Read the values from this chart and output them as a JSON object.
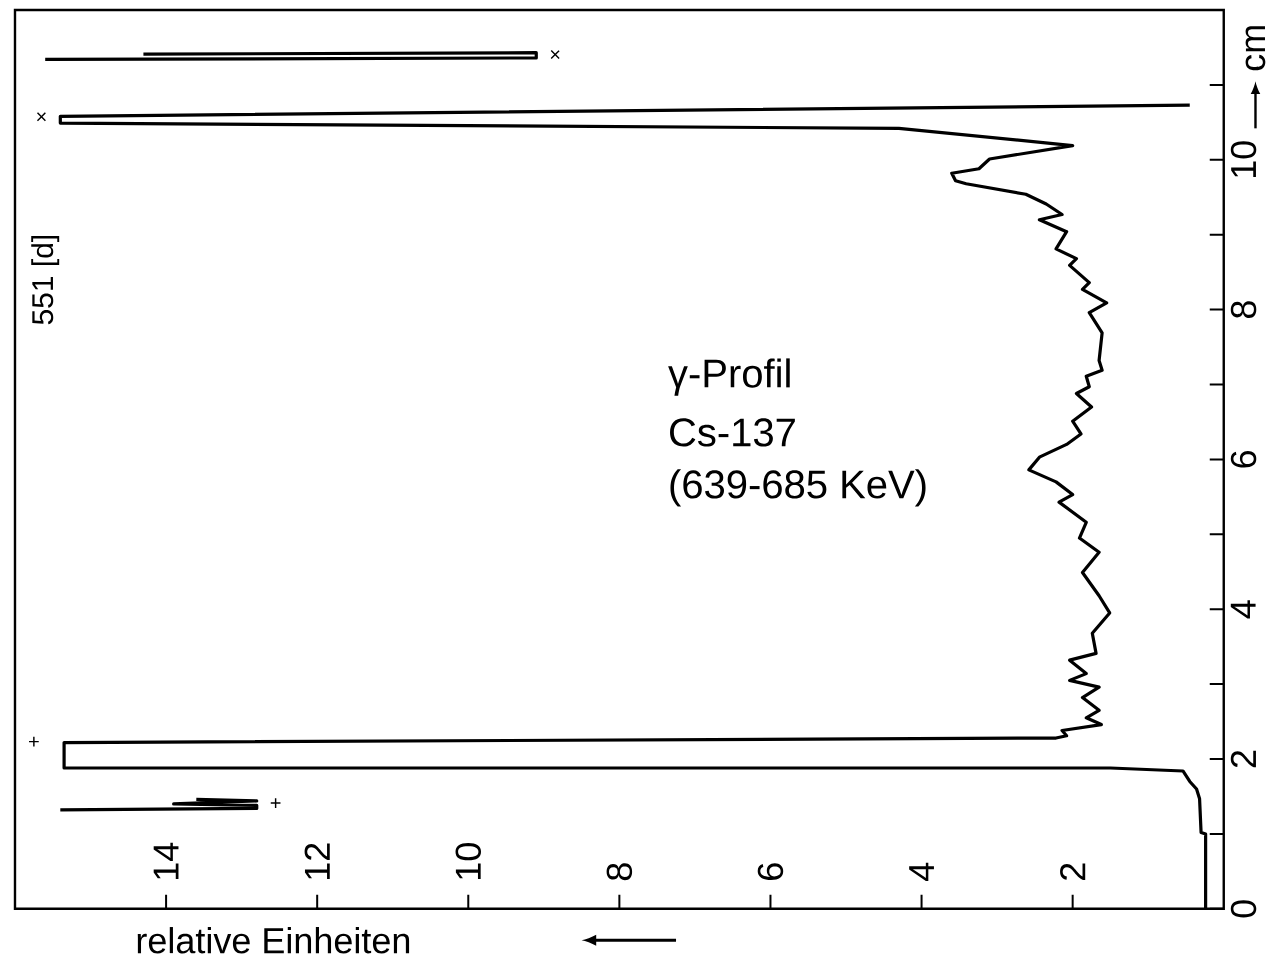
{
  "chart_data": {
    "type": "line",
    "xlabel": "relative Einheiten",
    "ylabel": "cm",
    "annotations": [
      "551 [d]",
      "γ-Profil",
      "Cs-137",
      "(639-685 KeV)",
      "+",
      "+",
      "×",
      "×"
    ],
    "xlim": [
      16,
      0
    ],
    "xticks": [
      2,
      4,
      6,
      8,
      10,
      12,
      14
    ],
    "ylim": [
      0,
      12
    ],
    "yticks": [
      0,
      {
        "value": 1,
        "label": null
      },
      2,
      {
        "value": 3,
        "label": null
      },
      4,
      {
        "value": 5,
        "label": null
      },
      6,
      {
        "value": 7,
        "label": null
      },
      8,
      {
        "value": 9,
        "label": null
      },
      10,
      {
        "value": 11,
        "label": null
      }
    ],
    "series": [
      {
        "color": "#000000",
        "x": [
          0.24,
          0.24,
          0.3,
          0.32,
          0.36,
          0.45,
          0.54,
          1.5,
          15.35,
          15.35,
          2.22,
          2.08,
          2.14,
          1.62,
          1.82,
          1.65,
          1.87,
          1.65,
          2.04,
          1.82,
          2.04,
          1.69,
          1.74,
          1.51,
          1.65,
          1.87,
          1.65,
          1.91,
          1.82,
          2.18,
          2.0,
          2.22,
          2.58,
          2.44,
          2.08,
          1.89,
          2.0,
          1.75,
          1.95,
          1.78,
          1.82,
          1.61,
          1.65,
          1.61,
          1.78,
          1.55,
          1.87,
          1.78,
          2.04,
          1.95,
          2.22,
          2.08,
          2.44,
          2.14,
          2.35,
          2.62,
          3.41,
          3.55,
          3.6,
          3.24,
          3.1,
          2.0,
          4.3,
          15.4,
          15.4,
          0.45
        ],
        "values": [
          0,
          1.0,
          1.02,
          1.47,
          1.6,
          1.7,
          1.84,
          1.88,
          1.88,
          2.22,
          2.28,
          2.31,
          2.38,
          2.46,
          2.55,
          2.65,
          2.82,
          2.96,
          3.05,
          3.14,
          3.32,
          3.41,
          3.68,
          3.95,
          4.18,
          4.49,
          4.76,
          4.95,
          5.16,
          5.43,
          5.53,
          5.7,
          5.86,
          6.03,
          6.2,
          6.34,
          6.51,
          6.7,
          6.88,
          6.97,
          7.11,
          7.19,
          7.32,
          7.69,
          7.96,
          8.09,
          8.27,
          8.36,
          8.59,
          8.68,
          8.81,
          9.04,
          9.2,
          9.27,
          9.41,
          9.54,
          9.68,
          9.72,
          9.82,
          9.88,
          10.01,
          10.19,
          10.42,
          10.49,
          10.58,
          10.73
        ]
      },
      {
        "color": "#000000",
        "x": [
          15.4,
          12.8,
          12.8,
          13.9,
          12.8,
          13.6
        ],
        "values": [
          1.32,
          1.34,
          1.38,
          1.4,
          1.44,
          1.46
        ]
      },
      {
        "color": "#000000",
        "x": [
          15.6,
          9.1,
          9.1,
          14.3
        ],
        "values": [
          11.34,
          11.36,
          11.43,
          11.41
        ]
      }
    ]
  }
}
